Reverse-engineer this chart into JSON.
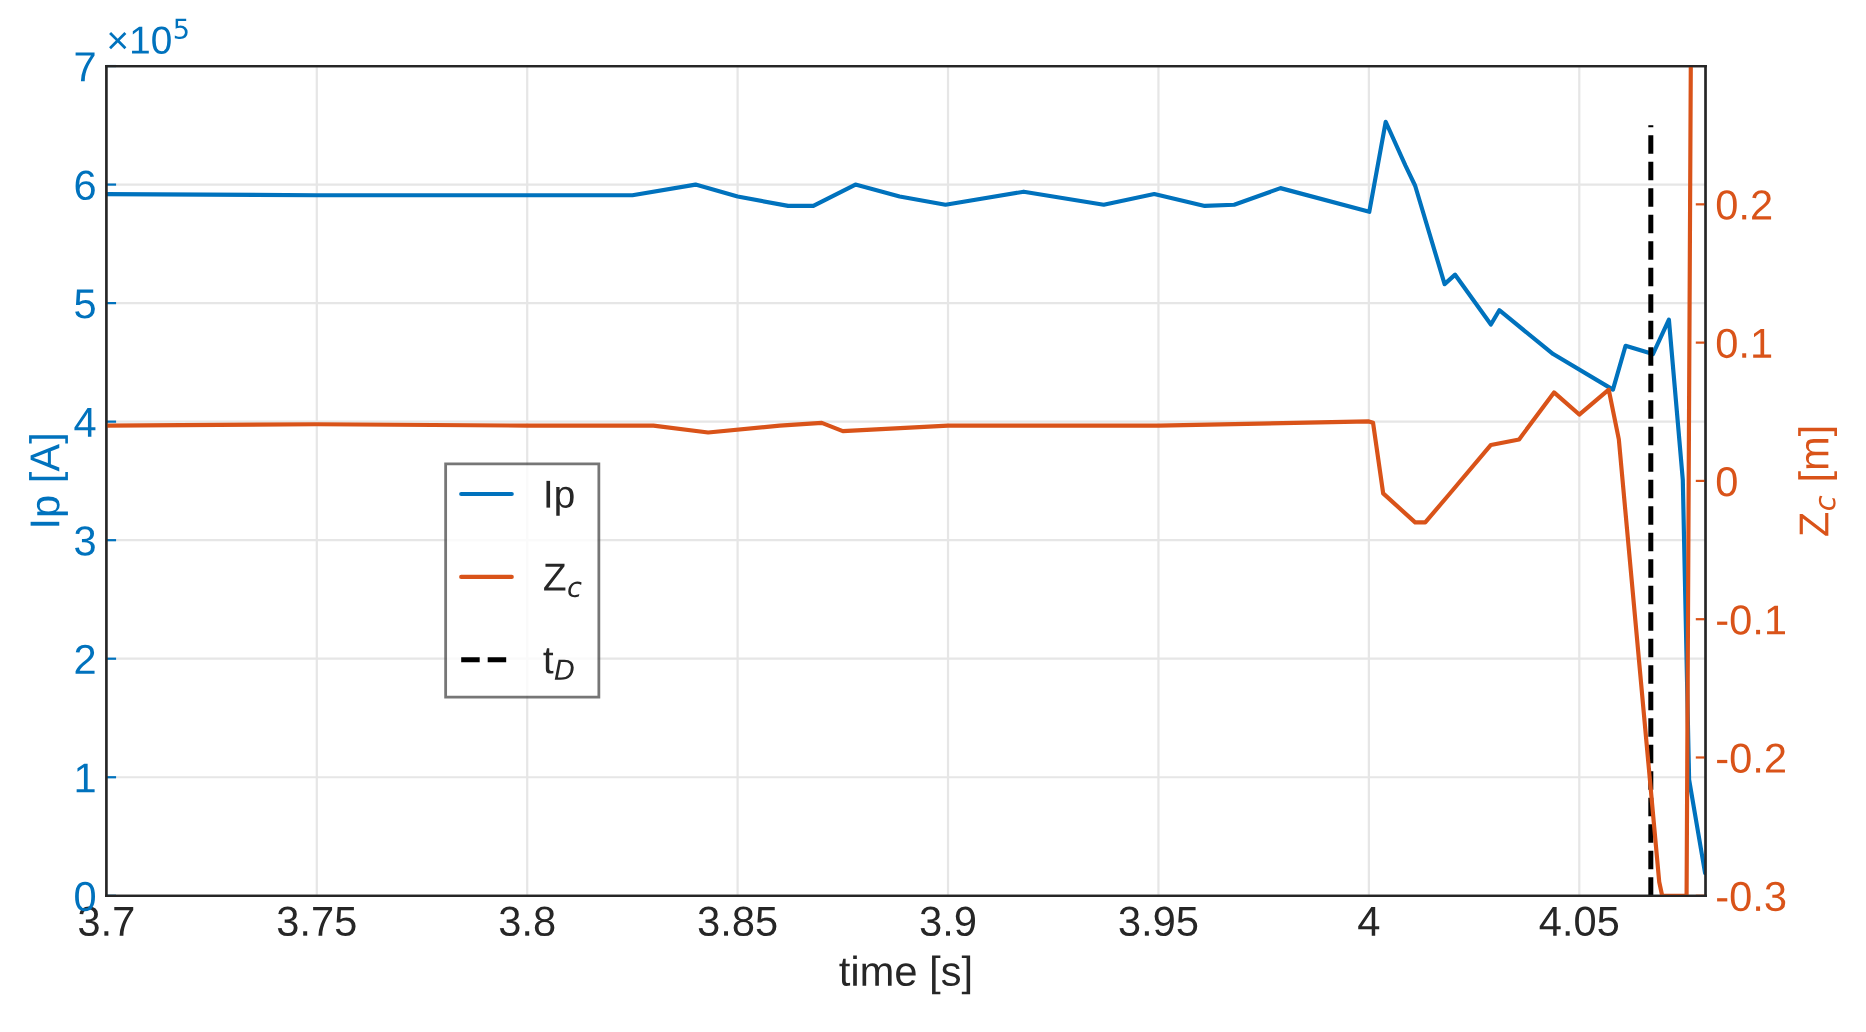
{
  "chart_data": {
    "type": "line",
    "xlabel": "time [s]",
    "ylabel": "Ip [A]",
    "y2label": "Z$_{c}$ [m]",
    "annotations": [
      "×10$^{5}$"
    ],
    "xlim": [
      3.7,
      4.08
    ],
    "xticks": [
      3.7,
      3.75,
      3.8,
      3.85,
      3.9,
      3.95,
      4,
      4.05
    ],
    "ylim": [
      0,
      7
    ],
    "yticks": [
      0,
      1,
      2,
      3,
      4,
      5,
      6,
      7
    ],
    "y2lim": [
      -0.3,
      0.3
    ],
    "y2ticks": [
      -0.3,
      -0.2,
      -0.1,
      0,
      0.1,
      0.2
    ],
    "grid": true,
    "legend": "left",
    "series": [
      {
        "name": "Ip",
        "color": "#0072bd",
        "x": [
          3.7,
          3.75,
          3.8,
          3.825,
          3.84,
          3.85,
          3.862,
          3.868,
          3.878,
          3.8885,
          3.8994,
          3.918,
          3.937,
          3.949,
          3.961,
          3.968,
          3.979,
          4.0001,
          4.004,
          4.0087,
          4.011,
          4.018,
          4.0205,
          4.029,
          4.031,
          4.0438,
          4.058,
          4.061,
          4.0675,
          4.0713,
          4.0746,
          4.0761,
          4.0799
        ],
        "values": [
          5.92,
          5.91,
          5.91,
          5.91,
          6.0,
          5.9,
          5.82,
          5.82,
          6.0,
          5.9,
          5.83,
          5.94,
          5.83,
          5.92,
          5.82,
          5.83,
          5.97,
          5.77,
          6.53,
          6.16,
          5.99,
          5.16,
          5.24,
          4.82,
          4.94,
          4.57,
          4.27,
          4.64,
          4.57,
          4.86,
          3.51,
          0.98,
          0.19
        ]
      },
      {
        "name": "Z$_{c}$",
        "color": "#d95319",
        "axis": "y2",
        "x": [
          3.7,
          3.75,
          3.8,
          3.83,
          3.843,
          3.86,
          3.87,
          3.875,
          3.9,
          3.95,
          4.0,
          4.001,
          4.0034,
          4.011,
          4.0134,
          4.019,
          4.029,
          4.0357,
          4.044,
          4.05,
          4.057,
          4.0594,
          4.069,
          4.0697,
          4.0755,
          4.0765
        ],
        "values": [
          0.04,
          0.041,
          0.04,
          0.04,
          0.035,
          0.04,
          0.042,
          0.036,
          0.04,
          0.04,
          0.043,
          0.042,
          -0.009,
          -0.03,
          -0.03,
          -0.01,
          0.026,
          0.03,
          0.064,
          0.048,
          0.066,
          0.03,
          -0.29,
          -0.3,
          -0.3,
          0.3
        ]
      },
      {
        "name": "t$_{D}$",
        "color": "#000000",
        "line_style": "dashed",
        "x": [
          4.067,
          4.067
        ],
        "values": [
          0,
          6.5
        ]
      }
    ]
  }
}
